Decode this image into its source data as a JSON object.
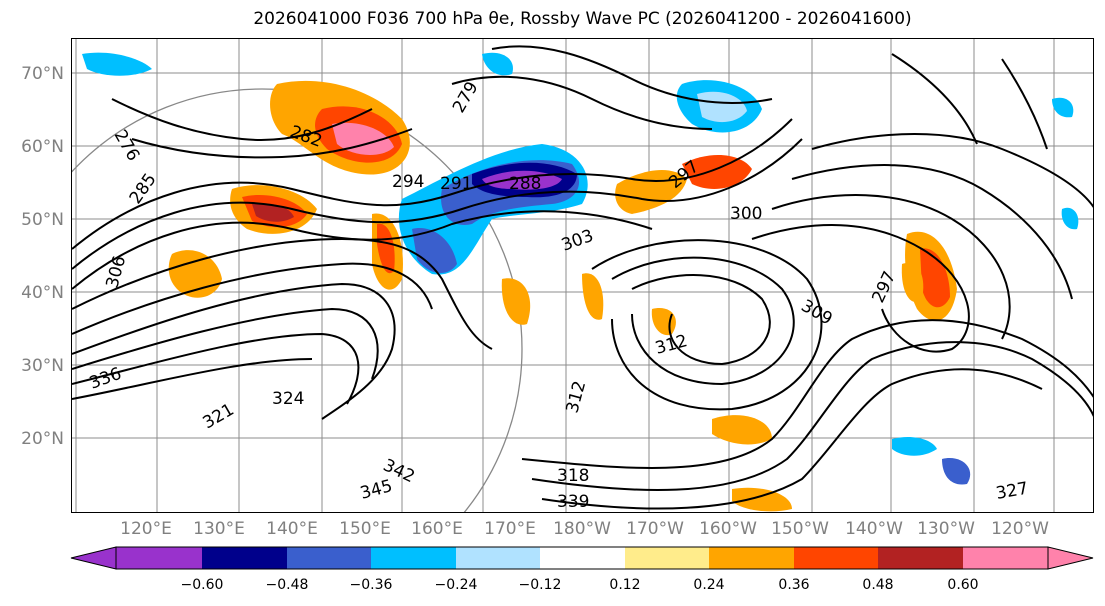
{
  "title": "2026041000 F036 700 hPa θe, Rossby Wave PC (2026041200 - 2026041600)",
  "map": {
    "lat_labels": [
      "70°N",
      "60°N",
      "50°N",
      "40°N",
      "30°N",
      "20°N"
    ],
    "lon_labels": [
      "120°E",
      "130°E",
      "140°E",
      "150°E",
      "160°E",
      "170°E",
      "180°W",
      "170°W",
      "160°W",
      "150°W",
      "140°W",
      "130°W",
      "120°W"
    ],
    "contour_labels": [
      "276",
      "282",
      "285",
      "288",
      "294",
      "291",
      "297",
      "300",
      "303",
      "309",
      "306",
      "312",
      "321",
      "324",
      "327",
      "318",
      "336",
      "339",
      "342",
      "345",
      "279",
      "312",
      "297"
    ]
  },
  "colorbar": {
    "ticks": [
      "−0.60",
      "−0.48",
      "−0.36",
      "−0.24",
      "−0.12",
      "0.12",
      "0.24",
      "0.36",
      "0.48",
      "0.60"
    ],
    "colors": [
      "#9932cc",
      "#00008b",
      "#3a5fcd",
      "#00bfff",
      "#b0e2ff",
      "#ffffff",
      "#ffec8b",
      "#ffa500",
      "#ff4500",
      "#b22222",
      "#ff82ab"
    ]
  }
}
